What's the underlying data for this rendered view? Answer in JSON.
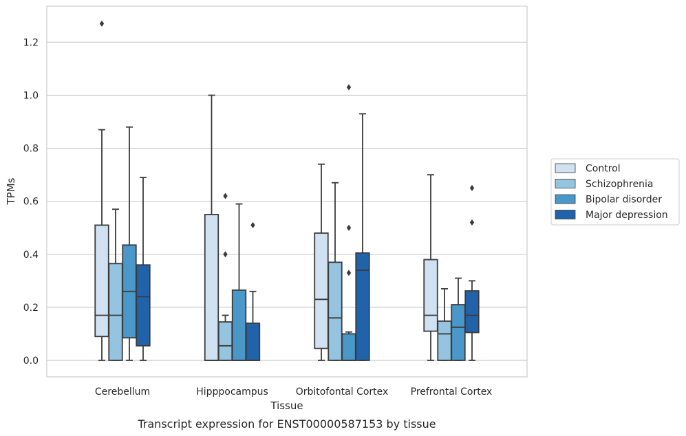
{
  "chart_data": {
    "type": "box",
    "xlabel": "Tissue",
    "ylabel": "TPMs",
    "caption": "Transcript expression for ENST00000587153 by tissue",
    "ylim": [
      -0.06,
      1.34
    ],
    "yticks": [
      0.0,
      0.2,
      0.4,
      0.6,
      0.8,
      1.0,
      1.2
    ],
    "ytick_labels": [
      "0.0",
      "0.2",
      "0.4",
      "0.6",
      "0.8",
      "1.0",
      "1.2"
    ],
    "grid": "horizontal",
    "legend_position": "right",
    "categories": [
      "Cerebellum",
      "Hipppocampus",
      "Orbitofontal Cortex",
      "Prefrontal Cortex"
    ],
    "series": [
      {
        "name": "Control",
        "color": "#d0e1f2",
        "boxes": [
          {
            "whislo": 0.0,
            "q1": 0.09,
            "med": 0.17,
            "q3": 0.51,
            "whishi": 0.87,
            "fliers": [
              1.27
            ]
          },
          {
            "whislo": 0.0,
            "q1": 0.0,
            "med": 0.0,
            "q3": 0.55,
            "whishi": 1.0,
            "fliers": []
          },
          {
            "whislo": 0.0,
            "q1": 0.045,
            "med": 0.23,
            "q3": 0.48,
            "whishi": 0.74,
            "fliers": []
          },
          {
            "whislo": 0.0,
            "q1": 0.11,
            "med": 0.17,
            "q3": 0.38,
            "whishi": 0.7,
            "fliers": []
          }
        ]
      },
      {
        "name": "Schizophrenia",
        "color": "#94c4df",
        "boxes": [
          {
            "whislo": 0.0,
            "q1": 0.0,
            "med": 0.17,
            "q3": 0.365,
            "whishi": 0.57,
            "fliers": []
          },
          {
            "whislo": 0.0,
            "q1": 0.0,
            "med": 0.055,
            "q3": 0.145,
            "whishi": 0.17,
            "fliers": [
              0.4,
              0.62
            ]
          },
          {
            "whislo": 0.0,
            "q1": 0.0,
            "med": 0.16,
            "q3": 0.37,
            "whishi": 0.67,
            "fliers": []
          },
          {
            "whislo": 0.0,
            "q1": 0.0,
            "med": 0.1,
            "q3": 0.148,
            "whishi": 0.27,
            "fliers": []
          }
        ]
      },
      {
        "name": "Bipolar disorder",
        "color": "#4a98c9",
        "boxes": [
          {
            "whislo": 0.0,
            "q1": 0.085,
            "med": 0.26,
            "q3": 0.435,
            "whishi": 0.88,
            "fliers": []
          },
          {
            "whislo": 0.0,
            "q1": 0.0,
            "med": 0.0,
            "q3": 0.265,
            "whishi": 0.59,
            "fliers": []
          },
          {
            "whislo": 0.0,
            "q1": 0.0,
            "med": 0.0,
            "q3": 0.1,
            "whishi": 0.107,
            "fliers": [
              0.33,
              0.5,
              1.03
            ]
          },
          {
            "whislo": 0.0,
            "q1": 0.0,
            "med": 0.125,
            "q3": 0.21,
            "whishi": 0.31,
            "fliers": []
          }
        ]
      },
      {
        "name": "Major depression",
        "color": "#2163aa",
        "boxes": [
          {
            "whislo": 0.0,
            "q1": 0.055,
            "med": 0.24,
            "q3": 0.36,
            "whishi": 0.69,
            "fliers": []
          },
          {
            "whislo": 0.0,
            "q1": 0.0,
            "med": 0.0,
            "q3": 0.14,
            "whishi": 0.26,
            "fliers": [
              0.51
            ]
          },
          {
            "whislo": 0.0,
            "q1": 0.0,
            "med": 0.34,
            "q3": 0.405,
            "whishi": 0.93,
            "fliers": []
          },
          {
            "whislo": 0.0,
            "q1": 0.105,
            "med": 0.17,
            "q3": 0.262,
            "whishi": 0.3,
            "fliers": [
              0.52,
              0.65
            ]
          }
        ]
      }
    ]
  }
}
